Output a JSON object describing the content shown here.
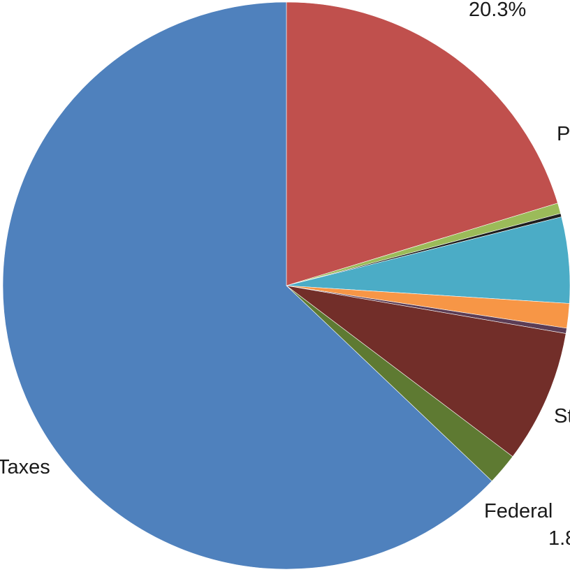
{
  "chart_data": {
    "type": "pie",
    "slices": [
      {
        "label": "",
        "value": 20.3,
        "color": "#C0504D",
        "display": "20.3%"
      },
      {
        "label": "",
        "value": 0.6,
        "color": "#9BBB59",
        "display": ""
      },
      {
        "label": "",
        "value": 0.2,
        "color": "#1F1F1F",
        "display": ""
      },
      {
        "label": "",
        "value": 4.9,
        "color": "#4BACC6",
        "display": ""
      },
      {
        "label": "",
        "value": 1.4,
        "color": "#F79646",
        "display": ""
      },
      {
        "label": "",
        "value": 0.3,
        "color": "#5C3D55",
        "display": ""
      },
      {
        "label": "",
        "value": 7.6,
        "color": "#722E29",
        "display": ""
      },
      {
        "label": "Federal",
        "value": 1.8,
        "color": "#5E7A32",
        "display": "1.8"
      },
      {
        "label": "Taxes",
        "value": 62.9,
        "color": "#4F81BD",
        "display": ""
      }
    ],
    "partial_labels": {
      "p": "P",
      "st": "St"
    }
  }
}
